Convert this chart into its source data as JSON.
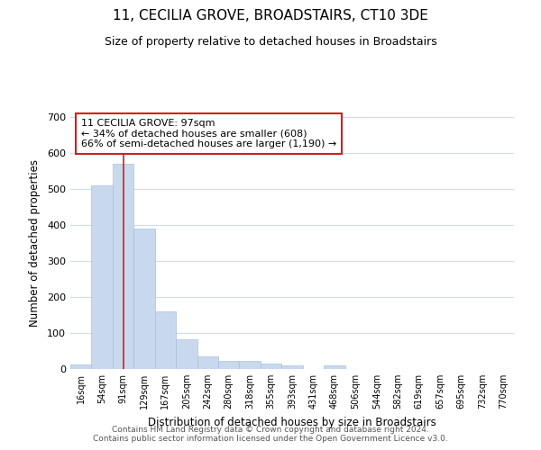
{
  "title": "11, CECILIA GROVE, BROADSTAIRS, CT10 3DE",
  "subtitle": "Size of property relative to detached houses in Broadstairs",
  "xlabel": "Distribution of detached houses by size in Broadstairs",
  "ylabel": "Number of detached properties",
  "bar_labels": [
    "16sqm",
    "54sqm",
    "91sqm",
    "129sqm",
    "167sqm",
    "205sqm",
    "242sqm",
    "280sqm",
    "318sqm",
    "355sqm",
    "393sqm",
    "431sqm",
    "468sqm",
    "506sqm",
    "544sqm",
    "582sqm",
    "619sqm",
    "657sqm",
    "695sqm",
    "732sqm",
    "770sqm"
  ],
  "bar_heights": [
    12,
    510,
    570,
    390,
    160,
    83,
    35,
    22,
    23,
    14,
    10,
    0,
    10,
    0,
    0,
    0,
    0,
    0,
    0,
    0,
    0
  ],
  "bar_color": "#c8d9ee",
  "bar_edge_color": "#a8c0dd",
  "vline_x": 2,
  "vline_color": "#cc2222",
  "ylim": [
    0,
    700
  ],
  "yticks": [
    0,
    100,
    200,
    300,
    400,
    500,
    600,
    700
  ],
  "annotation_line1": "11 CECILIA GROVE: 97sqm",
  "annotation_line2": "← 34% of detached houses are smaller (608)",
  "annotation_line3": "66% of semi-detached houses are larger (1,190) →",
  "annotation_box_color": "#ffffff",
  "annotation_box_edgecolor": "#cc2222",
  "footer_line1": "Contains HM Land Registry data © Crown copyright and database right 2024.",
  "footer_line2": "Contains public sector information licensed under the Open Government Licence v3.0.",
  "background_color": "#ffffff",
  "grid_color": "#ccdcee"
}
